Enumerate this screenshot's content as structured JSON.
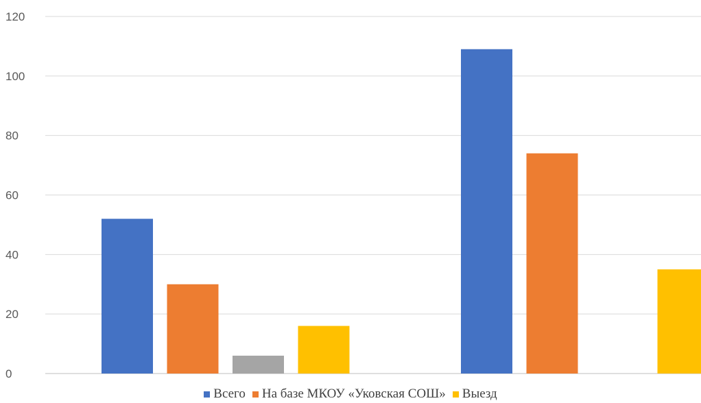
{
  "chart_data": {
    "type": "bar",
    "categories": [
      "",
      ""
    ],
    "series": [
      {
        "name": "Всего",
        "values": [
          52,
          109
        ],
        "color": "#4472C4"
      },
      {
        "name": "На базе МКОУ «Уковская СОШ»",
        "values": [
          30,
          74
        ],
        "color": "#ED7D31"
      },
      {
        "name": "",
        "values": [
          6,
          0
        ],
        "color": "#A5A5A5"
      },
      {
        "name": "Выезд",
        "values": [
          16,
          35
        ],
        "color": "#FFC000"
      }
    ],
    "yticks": [
      0,
      20,
      40,
      60,
      80,
      100,
      120
    ],
    "ylim": [
      0,
      120
    ],
    "grid": true,
    "legend_position": "bottom",
    "title": "",
    "xlabel": "",
    "ylabel": ""
  },
  "legend": [
    {
      "label": "Всего",
      "color": "#4472C4"
    },
    {
      "label": "На базе МКОУ «Уковская СОШ»",
      "color": "#ED7D31"
    },
    {
      "label": "Выезд",
      "color": "#FFC000"
    }
  ]
}
